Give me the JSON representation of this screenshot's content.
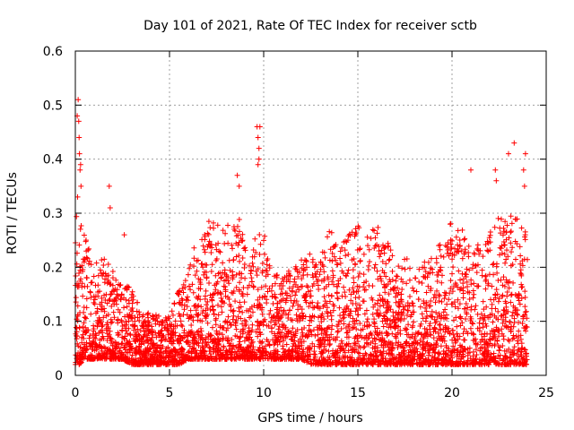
{
  "chart_data": {
    "type": "scatter",
    "title": "Day 101 of 2021, Rate Of TEC Index for receiver sctb",
    "xlabel": "GPS time / hours",
    "ylabel": "ROTI / TECUs",
    "xlim": [
      0,
      25
    ],
    "ylim": [
      0,
      0.6
    ],
    "x_ticks": [
      0,
      5,
      10,
      15,
      20,
      25
    ],
    "y_ticks": [
      0,
      0.1,
      0.2,
      0.3,
      0.4,
      0.5,
      0.6
    ],
    "x_tick_labels": [
      "0",
      "5",
      "10",
      "15",
      "20",
      "25"
    ],
    "y_tick_labels": [
      "0",
      "0.1",
      "0.2",
      "0.3",
      "0.4",
      "0.5",
      "0.6"
    ],
    "grid": true,
    "marker": "+",
    "color": "#ff0000",
    "envelope": {
      "hours": [
        0,
        0.25,
        0.5,
        1,
        1.5,
        2,
        2.5,
        3,
        3.5,
        4,
        4.5,
        5,
        5.5,
        6,
        6.5,
        7,
        7.5,
        8,
        8.5,
        8.8,
        9.2,
        9.5,
        10,
        10.5,
        11,
        11.5,
        12,
        12.5,
        13,
        13.5,
        14,
        14.5,
        15,
        15.5,
        16,
        16.5,
        17,
        17.5,
        18,
        18.5,
        19,
        19.5,
        20,
        20.5,
        21,
        21.5,
        22,
        22.5,
        23,
        23.5,
        24
      ],
      "roti_low": [
        0.02,
        0.02,
        0.03,
        0.03,
        0.03,
        0.03,
        0.03,
        0.02,
        0.02,
        0.02,
        0.02,
        0.02,
        0.02,
        0.03,
        0.03,
        0.03,
        0.03,
        0.03,
        0.03,
        0.03,
        0.03,
        0.03,
        0.03,
        0.03,
        0.03,
        0.03,
        0.03,
        0.02,
        0.02,
        0.02,
        0.02,
        0.02,
        0.02,
        0.02,
        0.02,
        0.02,
        0.02,
        0.02,
        0.02,
        0.02,
        0.02,
        0.02,
        0.02,
        0.02,
        0.02,
        0.02,
        0.02,
        0.02,
        0.02,
        0.02,
        0.02
      ],
      "roti_high": [
        0.3,
        0.31,
        0.26,
        0.2,
        0.24,
        0.2,
        0.16,
        0.17,
        0.11,
        0.12,
        0.11,
        0.11,
        0.16,
        0.21,
        0.26,
        0.29,
        0.28,
        0.28,
        0.29,
        0.29,
        0.2,
        0.26,
        0.27,
        0.2,
        0.18,
        0.2,
        0.22,
        0.23,
        0.21,
        0.28,
        0.24,
        0.26,
        0.28,
        0.26,
        0.28,
        0.25,
        0.23,
        0.22,
        0.2,
        0.21,
        0.23,
        0.25,
        0.29,
        0.28,
        0.23,
        0.25,
        0.27,
        0.3,
        0.3,
        0.29,
        0.26
      ]
    },
    "outliers": [
      {
        "x": 0.1,
        "y": 0.48
      },
      {
        "x": 0.15,
        "y": 0.51
      },
      {
        "x": 0.18,
        "y": 0.47
      },
      {
        "x": 0.2,
        "y": 0.44
      },
      {
        "x": 0.22,
        "y": 0.41
      },
      {
        "x": 0.25,
        "y": 0.38
      },
      {
        "x": 0.28,
        "y": 0.39
      },
      {
        "x": 0.3,
        "y": 0.35
      },
      {
        "x": 0.12,
        "y": 0.33
      },
      {
        "x": 1.8,
        "y": 0.35
      },
      {
        "x": 1.85,
        "y": 0.31
      },
      {
        "x": 2.6,
        "y": 0.26
      },
      {
        "x": 8.6,
        "y": 0.37
      },
      {
        "x": 8.7,
        "y": 0.35
      },
      {
        "x": 9.65,
        "y": 0.46
      },
      {
        "x": 9.7,
        "y": 0.44
      },
      {
        "x": 9.75,
        "y": 0.42
      },
      {
        "x": 9.7,
        "y": 0.39
      },
      {
        "x": 9.8,
        "y": 0.46
      },
      {
        "x": 9.75,
        "y": 0.4
      },
      {
        "x": 21.0,
        "y": 0.38
      },
      {
        "x": 22.3,
        "y": 0.38
      },
      {
        "x": 22.35,
        "y": 0.36
      },
      {
        "x": 23.0,
        "y": 0.41
      },
      {
        "x": 23.3,
        "y": 0.43
      },
      {
        "x": 23.9,
        "y": 0.41
      },
      {
        "x": 23.8,
        "y": 0.38
      },
      {
        "x": 23.85,
        "y": 0.35
      }
    ]
  }
}
